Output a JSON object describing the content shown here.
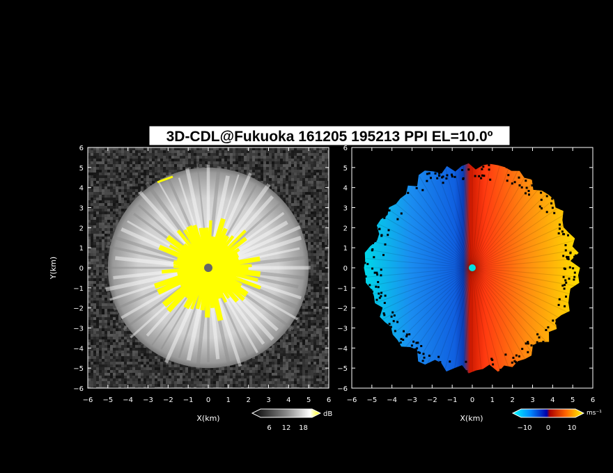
{
  "title": "3D-CDL@Fukuoka 161205 195213 PPI EL=10.0º",
  "chart_data": [
    {
      "type": "heatmap",
      "product": "reflectivity",
      "xlabel": "X(km)",
      "ylabel": "Y(km)",
      "xlim": [
        -6,
        6
      ],
      "ylim": [
        -6,
        6
      ],
      "x_ticks": [
        -6,
        -5,
        -4,
        -3,
        -2,
        -1,
        0,
        1,
        2,
        3,
        4,
        5,
        6
      ],
      "y_ticks": [
        -6,
        -5,
        -4,
        -3,
        -2,
        -1,
        0,
        1,
        2,
        3,
        4,
        5,
        6
      ],
      "colorbar": {
        "unit": "dB",
        "ticks": [
          6,
          12,
          18
        ],
        "range": [
          0,
          24
        ]
      },
      "echo_radius_km": 5.0,
      "colors": {
        "noise": "#333333",
        "echo": "#d8d8d8",
        "near": "#ffff00",
        "center": "#666666"
      }
    },
    {
      "type": "heatmap",
      "product": "doppler_velocity",
      "xlabel": "X(km)",
      "ylabel": "",
      "xlim": [
        -6,
        6
      ],
      "ylim": [
        -6,
        6
      ],
      "x_ticks": [
        -6,
        -5,
        -4,
        -3,
        -2,
        -1,
        0,
        1,
        2,
        3,
        4,
        5,
        6
      ],
      "y_ticks": [
        -6,
        -5,
        -4,
        -3,
        -2,
        -1,
        0,
        1,
        2,
        3,
        4,
        5,
        6
      ],
      "colorbar": {
        "unit": "ms⁻¹",
        "ticks": [
          -10,
          0,
          10
        ],
        "range": [
          -15,
          15
        ]
      },
      "echo_radius_km": 5.3,
      "colors": {
        "negative": "#0055ff",
        "positive": "#ff2200",
        "center": "#00e0e0"
      }
    }
  ]
}
